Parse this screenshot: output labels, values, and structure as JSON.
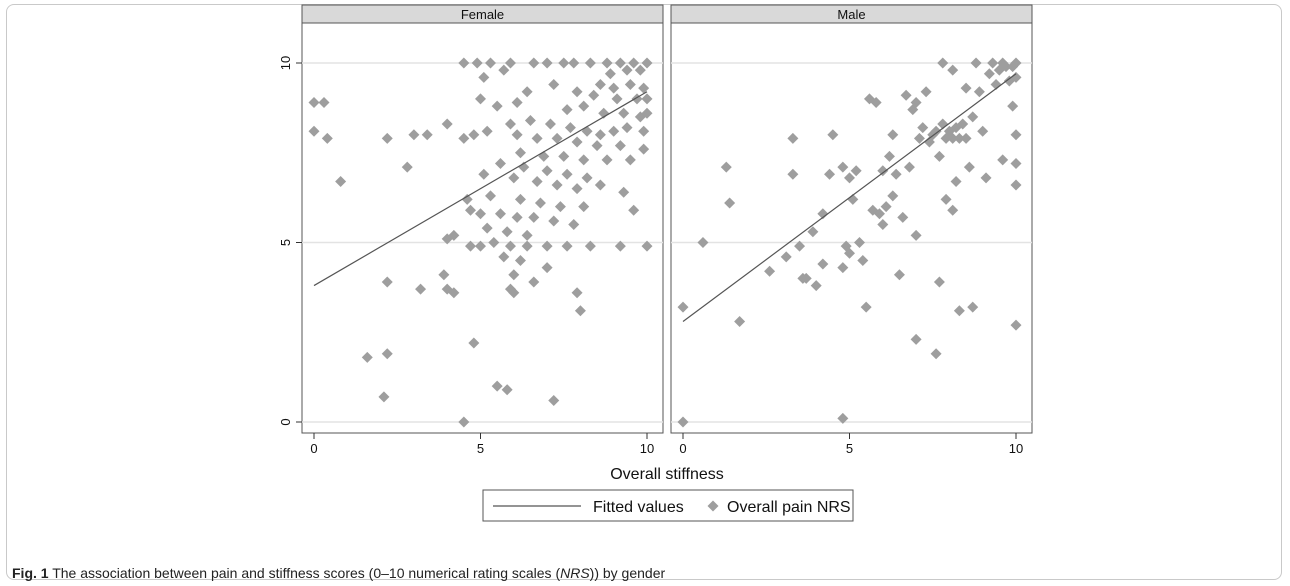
{
  "chart_data": {
    "type": "scatter",
    "xlabel": "Overall stiffness",
    "ylabel": "",
    "xlim": [
      0,
      10
    ],
    "ylim": [
      0,
      10
    ],
    "xticks": [
      "0",
      "5",
      "10"
    ],
    "yticks": [
      "0",
      "5",
      "10"
    ],
    "grid": "horizontal",
    "legend_position": "bottom",
    "legend": [
      "Fitted values",
      "Overall pain NRS"
    ],
    "colors": {
      "points": "#9e9e9e",
      "fit_line": "#555555",
      "strip": "#d9d9d9",
      "grid": "#e3e3e3"
    },
    "panels": [
      {
        "name": "Female",
        "fitted_line": {
          "x": [
            0,
            10
          ],
          "y": [
            3.8,
            9.2
          ]
        },
        "points": [
          [
            0.0,
            8.9
          ],
          [
            0.3,
            8.9
          ],
          [
            0.0,
            8.1
          ],
          [
            0.4,
            7.9
          ],
          [
            0.8,
            6.7
          ],
          [
            2.2,
            7.9
          ],
          [
            2.8,
            7.1
          ],
          [
            3.0,
            8.0
          ],
          [
            3.4,
            8.0
          ],
          [
            4.0,
            8.3
          ],
          [
            4.5,
            7.9
          ],
          [
            4.5,
            10.0
          ],
          [
            4.9,
            10.0
          ],
          [
            5.3,
            10.0
          ],
          [
            5.9,
            10.0
          ],
          [
            6.6,
            10.0
          ],
          [
            7.0,
            10.0
          ],
          [
            7.5,
            10.0
          ],
          [
            7.8,
            10.0
          ],
          [
            8.3,
            10.0
          ],
          [
            8.8,
            10.0
          ],
          [
            9.2,
            10.0
          ],
          [
            9.6,
            10.0
          ],
          [
            10.0,
            10.0
          ],
          [
            9.8,
            9.8
          ],
          [
            9.4,
            9.8
          ],
          [
            8.9,
            9.7
          ],
          [
            8.6,
            9.4
          ],
          [
            9.0,
            9.3
          ],
          [
            9.5,
            9.4
          ],
          [
            9.9,
            9.3
          ],
          [
            5.7,
            9.8
          ],
          [
            5.1,
            9.6
          ],
          [
            6.4,
            9.2
          ],
          [
            7.2,
            9.4
          ],
          [
            7.9,
            9.2
          ],
          [
            8.4,
            9.1
          ],
          [
            9.1,
            9.0
          ],
          [
            9.7,
            9.0
          ],
          [
            10.0,
            9.0
          ],
          [
            5.0,
            9.0
          ],
          [
            5.5,
            8.8
          ],
          [
            6.1,
            8.9
          ],
          [
            7.6,
            8.7
          ],
          [
            8.1,
            8.8
          ],
          [
            8.7,
            8.6
          ],
          [
            9.3,
            8.6
          ],
          [
            9.8,
            8.5
          ],
          [
            10.0,
            8.6
          ],
          [
            5.9,
            8.3
          ],
          [
            6.5,
            8.4
          ],
          [
            7.1,
            8.3
          ],
          [
            7.7,
            8.2
          ],
          [
            8.2,
            8.1
          ],
          [
            8.6,
            8.0
          ],
          [
            9.0,
            8.1
          ],
          [
            9.4,
            8.2
          ],
          [
            9.9,
            8.1
          ],
          [
            6.1,
            8.0
          ],
          [
            6.7,
            7.9
          ],
          [
            7.3,
            7.9
          ],
          [
            7.9,
            7.8
          ],
          [
            8.5,
            7.7
          ],
          [
            9.2,
            7.7
          ],
          [
            9.9,
            7.6
          ],
          [
            5.2,
            8.1
          ],
          [
            4.8,
            8.0
          ],
          [
            6.2,
            7.5
          ],
          [
            6.9,
            7.4
          ],
          [
            7.5,
            7.4
          ],
          [
            8.1,
            7.3
          ],
          [
            8.8,
            7.3
          ],
          [
            9.5,
            7.3
          ],
          [
            5.6,
            7.2
          ],
          [
            6.3,
            7.1
          ],
          [
            7.0,
            7.0
          ],
          [
            7.6,
            6.9
          ],
          [
            8.2,
            6.8
          ],
          [
            5.1,
            6.9
          ],
          [
            6.0,
            6.8
          ],
          [
            6.7,
            6.7
          ],
          [
            7.3,
            6.6
          ],
          [
            7.9,
            6.5
          ],
          [
            8.6,
            6.6
          ],
          [
            9.3,
            6.4
          ],
          [
            4.6,
            6.2
          ],
          [
            5.3,
            6.3
          ],
          [
            6.2,
            6.2
          ],
          [
            6.8,
            6.1
          ],
          [
            7.4,
            6.0
          ],
          [
            8.1,
            6.0
          ],
          [
            9.6,
            5.9
          ],
          [
            4.7,
            5.9
          ],
          [
            5.0,
            5.8
          ],
          [
            5.6,
            5.8
          ],
          [
            6.1,
            5.7
          ],
          [
            6.6,
            5.7
          ],
          [
            7.2,
            5.6
          ],
          [
            7.8,
            5.5
          ],
          [
            5.2,
            5.4
          ],
          [
            5.8,
            5.3
          ],
          [
            6.4,
            5.2
          ],
          [
            4.2,
            5.2
          ],
          [
            4.0,
            5.1
          ],
          [
            4.7,
            4.9
          ],
          [
            5.0,
            4.9
          ],
          [
            5.4,
            5.0
          ],
          [
            5.9,
            4.9
          ],
          [
            6.4,
            4.9
          ],
          [
            7.0,
            4.9
          ],
          [
            7.6,
            4.9
          ],
          [
            8.3,
            4.9
          ],
          [
            9.2,
            4.9
          ],
          [
            10.0,
            4.9
          ],
          [
            5.7,
            4.6
          ],
          [
            6.2,
            4.5
          ],
          [
            7.0,
            4.3
          ],
          [
            6.0,
            4.1
          ],
          [
            6.6,
            3.9
          ],
          [
            5.9,
            3.7
          ],
          [
            6.0,
            3.6
          ],
          [
            3.9,
            4.1
          ],
          [
            3.2,
            3.7
          ],
          [
            4.2,
            3.6
          ],
          [
            4.0,
            3.7
          ],
          [
            7.9,
            3.6
          ],
          [
            8.0,
            3.1
          ],
          [
            2.2,
            3.9
          ],
          [
            1.6,
            1.8
          ],
          [
            2.2,
            1.9
          ],
          [
            2.1,
            0.7
          ],
          [
            4.8,
            2.2
          ],
          [
            5.5,
            1.0
          ],
          [
            5.8,
            0.9
          ],
          [
            7.2,
            0.6
          ],
          [
            4.5,
            0.0
          ]
        ]
      },
      {
        "name": "Male",
        "fitted_line": {
          "x": [
            0,
            10
          ],
          "y": [
            2.8,
            9.7
          ]
        },
        "points": [
          [
            0.0,
            3.2
          ],
          [
            0.0,
            0.0
          ],
          [
            0.6,
            5.0
          ],
          [
            1.3,
            7.1
          ],
          [
            1.4,
            6.1
          ],
          [
            1.7,
            2.8
          ],
          [
            2.6,
            4.2
          ],
          [
            3.1,
            4.6
          ],
          [
            3.3,
            6.9
          ],
          [
            3.3,
            7.9
          ],
          [
            3.5,
            4.9
          ],
          [
            3.6,
            4.0
          ],
          [
            3.7,
            4.0
          ],
          [
            3.9,
            5.3
          ],
          [
            4.0,
            3.8
          ],
          [
            4.2,
            5.8
          ],
          [
            4.2,
            4.4
          ],
          [
            4.4,
            6.9
          ],
          [
            4.5,
            8.0
          ],
          [
            4.8,
            7.1
          ],
          [
            4.9,
            4.9
          ],
          [
            4.8,
            4.3
          ],
          [
            5.0,
            6.8
          ],
          [
            5.0,
            4.7
          ],
          [
            5.1,
            6.2
          ],
          [
            5.3,
            5.0
          ],
          [
            5.4,
            4.5
          ],
          [
            5.6,
            9.0
          ],
          [
            5.7,
            5.9
          ],
          [
            5.8,
            8.9
          ],
          [
            5.9,
            5.8
          ],
          [
            6.0,
            5.5
          ],
          [
            6.0,
            7.0
          ],
          [
            6.1,
            6.0
          ],
          [
            6.2,
            7.4
          ],
          [
            6.3,
            8.0
          ],
          [
            6.4,
            6.9
          ],
          [
            6.5,
            4.1
          ],
          [
            6.6,
            5.7
          ],
          [
            6.7,
            9.1
          ],
          [
            6.8,
            7.1
          ],
          [
            6.9,
            8.7
          ],
          [
            7.0,
            8.9
          ],
          [
            7.0,
            5.2
          ],
          [
            7.1,
            7.9
          ],
          [
            7.2,
            8.2
          ],
          [
            7.3,
            9.2
          ],
          [
            7.4,
            7.8
          ],
          [
            7.5,
            8.0
          ],
          [
            7.6,
            8.1
          ],
          [
            7.7,
            7.4
          ],
          [
            7.8,
            10.0
          ],
          [
            7.8,
            8.3
          ],
          [
            7.9,
            7.9
          ],
          [
            8.0,
            8.1
          ],
          [
            8.1,
            9.8
          ],
          [
            8.1,
            7.9
          ],
          [
            8.2,
            6.7
          ],
          [
            8.2,
            8.2
          ],
          [
            8.3,
            7.9
          ],
          [
            8.4,
            8.3
          ],
          [
            8.5,
            9.3
          ],
          [
            8.5,
            7.9
          ],
          [
            8.6,
            7.1
          ],
          [
            8.7,
            8.5
          ],
          [
            8.8,
            10.0
          ],
          [
            8.9,
            9.2
          ],
          [
            9.0,
            8.1
          ],
          [
            9.1,
            6.8
          ],
          [
            9.2,
            9.7
          ],
          [
            9.3,
            10.0
          ],
          [
            9.4,
            9.4
          ],
          [
            9.5,
            9.8
          ],
          [
            9.6,
            10.0
          ],
          [
            9.7,
            9.9
          ],
          [
            9.8,
            9.5
          ],
          [
            9.9,
            9.9
          ],
          [
            10.0,
            10.0
          ],
          [
            10.0,
            9.6
          ],
          [
            9.9,
            8.8
          ],
          [
            10.0,
            8.0
          ],
          [
            10.0,
            7.2
          ],
          [
            10.0,
            6.6
          ],
          [
            10.0,
            2.7
          ],
          [
            9.6,
            7.3
          ],
          [
            8.1,
            5.9
          ],
          [
            7.7,
            3.9
          ],
          [
            8.3,
            3.1
          ],
          [
            8.7,
            3.2
          ],
          [
            7.0,
            2.3
          ],
          [
            7.6,
            1.9
          ],
          [
            4.8,
            0.1
          ],
          [
            5.5,
            3.2
          ],
          [
            5.2,
            7.0
          ],
          [
            6.3,
            6.3
          ],
          [
            7.9,
            6.2
          ]
        ]
      }
    ]
  },
  "caption": {
    "label": "Fig. 1",
    "text_before": " The association between pain and stiffness scores (0–10 numerical rating scales (",
    "abbr": "NRS",
    "text_after": ")) by gender"
  }
}
